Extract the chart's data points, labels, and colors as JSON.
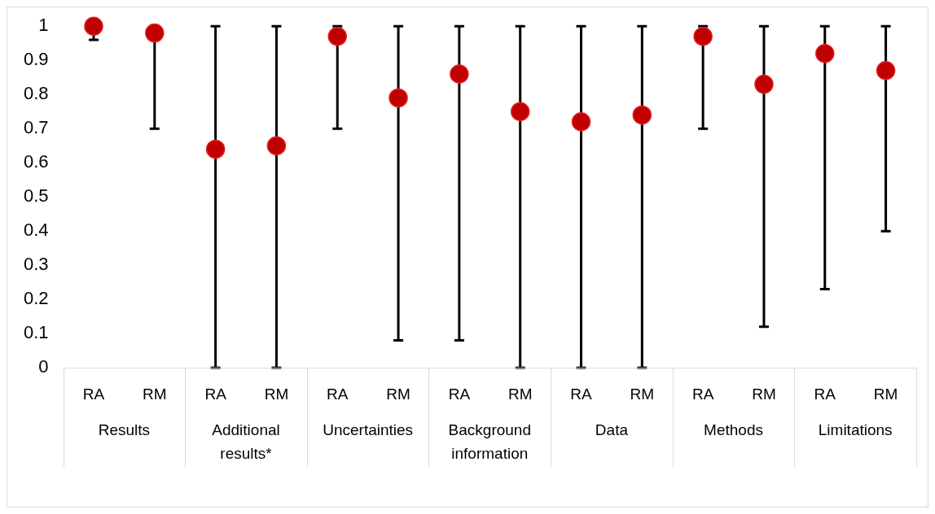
{
  "chart_data": {
    "type": "scatter",
    "categories": [
      "RA",
      "RM",
      "RA",
      "RM",
      "RA",
      "RM",
      "RA",
      "RM",
      "RA",
      "RM",
      "RA",
      "RM",
      "RA",
      "RM"
    ],
    "values": [
      1.0,
      0.98,
      0.64,
      0.65,
      0.97,
      0.79,
      0.86,
      0.75,
      0.72,
      0.74,
      0.97,
      0.83,
      0.92,
      0.87
    ],
    "errors": [
      [
        0.96,
        1
      ],
      [
        0.7,
        1
      ],
      [
        0,
        1
      ],
      [
        0,
        1
      ],
      [
        0.7,
        1
      ],
      [
        0.08,
        1
      ],
      [
        0.08,
        1
      ],
      [
        0,
        1
      ],
      [
        0,
        1
      ],
      [
        0,
        1
      ],
      [
        0.7,
        1
      ],
      [
        0.12,
        1
      ],
      [
        0.23,
        1
      ],
      [
        0.4,
        1
      ]
    ],
    "color": "#c00000",
    "marker": "circle",
    "ylim": [
      0,
      1
    ],
    "yticks": [
      0,
      0.1,
      0.2,
      0.3,
      0.4,
      0.5,
      0.6,
      0.7,
      0.8,
      0.9,
      1
    ],
    "annotations": [
      "Results",
      "Additional results*",
      "Uncertainties",
      "Background information",
      "Data",
      "Methods",
      "Limitations"
    ]
  }
}
